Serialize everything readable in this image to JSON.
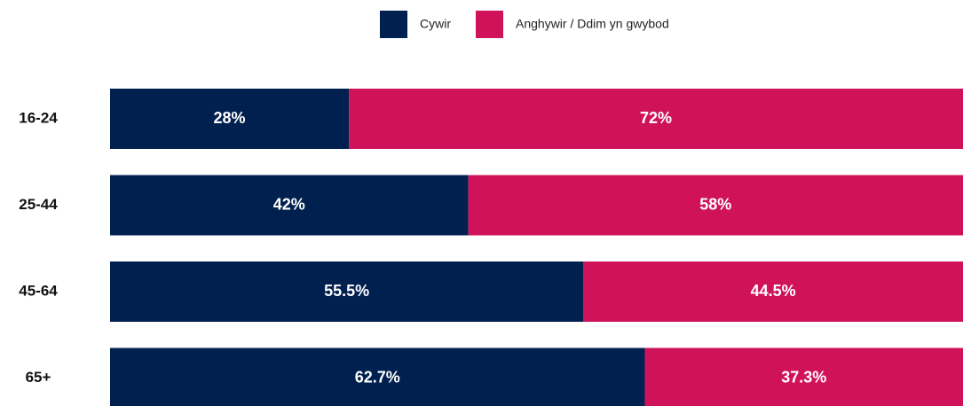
{
  "chart_data": {
    "type": "stacked-bar-horizontal",
    "categories": [
      "16-24",
      "25-44",
      "45-64",
      "65+"
    ],
    "series": [
      {
        "name": "Cywir",
        "color": "#00204f",
        "values": [
          28,
          42,
          55.5,
          62.7
        ],
        "value_labels": [
          "28%",
          "42%",
          "55.5%",
          "62.7%"
        ]
      },
      {
        "name": "Anghywir / Ddim yn gwybod",
        "color": "#d0125a",
        "values": [
          72,
          58,
          44.5,
          37.3
        ],
        "value_labels": [
          "72%",
          "58%",
          "44.5%",
          "37.3%"
        ]
      }
    ],
    "legend": "top"
  }
}
